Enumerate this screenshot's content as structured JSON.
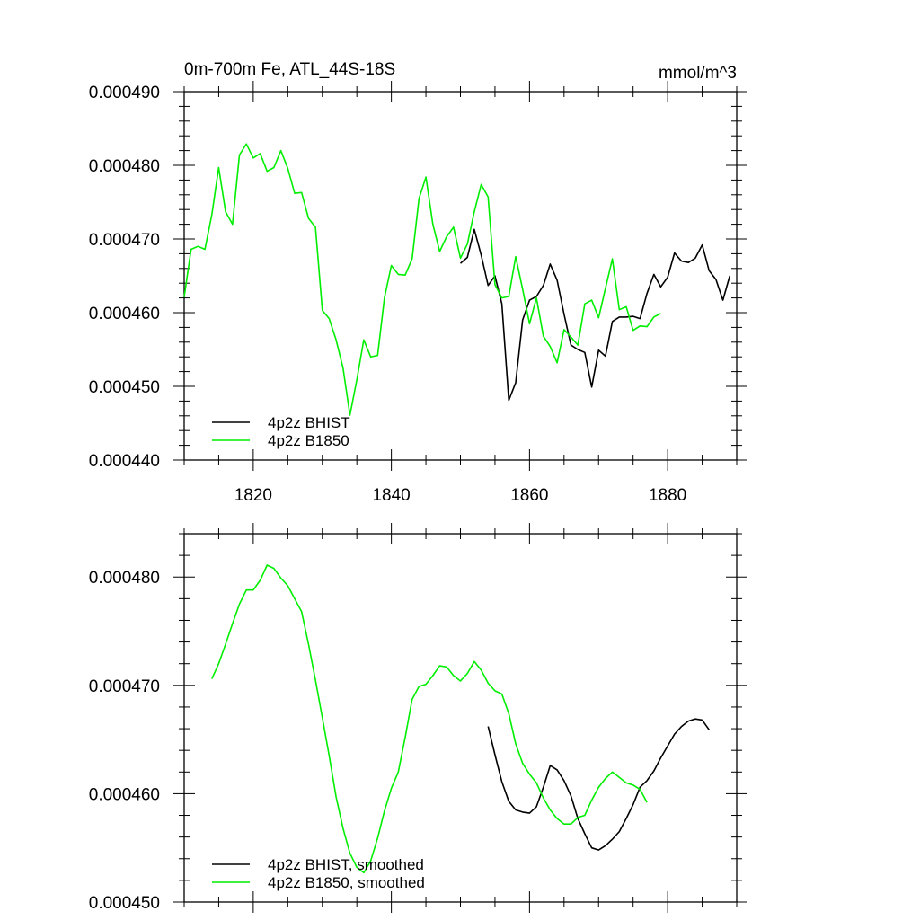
{
  "chart_data": [
    {
      "type": "line",
      "title": "0m-700m Fe, ATL_44S-18S",
      "units": "mmol/m^3",
      "xlim": [
        1810,
        1890
      ],
      "ylim": [
        0.00044,
        0.00049
      ],
      "ytick_values": [
        0.00044,
        0.00045,
        0.00046,
        0.00047,
        0.00048,
        0.00049
      ],
      "ytick_labels": [
        "0.000440",
        "0.000450",
        "0.000460",
        "0.000470",
        "0.000480",
        "0.000490"
      ],
      "xtick_values": [
        1820,
        1840,
        1860,
        1880
      ],
      "xtick_labels": [
        "1820",
        "1840",
        "1860",
        "1880"
      ],
      "legend_position": "bottom-left",
      "series": [
        {
          "name": "4p2z BHIST",
          "color": "#000000",
          "x": [
            1850,
            1851,
            1852,
            1853,
            1854,
            1855,
            1856,
            1857,
            1858,
            1859,
            1860,
            1861,
            1862,
            1863,
            1864,
            1865,
            1866,
            1867,
            1868,
            1869,
            1870,
            1871,
            1872,
            1873,
            1874,
            1875,
            1876,
            1877,
            1878,
            1879,
            1880,
            1881,
            1882,
            1883,
            1884,
            1885,
            1886,
            1887,
            1888,
            1889
          ],
          "y": [
            0.0004667,
            0.0004675,
            0.0004713,
            0.0004678,
            0.0004637,
            0.000465,
            0.0004612,
            0.0004481,
            0.0004505,
            0.000459,
            0.0004617,
            0.0004622,
            0.0004637,
            0.0004666,
            0.0004644,
            0.0004598,
            0.0004556,
            0.000455,
            0.0004546,
            0.0004499,
            0.0004549,
            0.0004541,
            0.0004588,
            0.0004594,
            0.0004594,
            0.0004595,
            0.0004592,
            0.0004626,
            0.0004652,
            0.0004635,
            0.0004648,
            0.0004681,
            0.000467,
            0.0004668,
            0.0004674,
            0.0004692,
            0.0004657,
            0.0004645,
            0.0004617,
            0.000465
          ]
        },
        {
          "name": "4p2z B1850",
          "color": "#00ee00",
          "x": [
            1810,
            1811,
            1812,
            1813,
            1814,
            1815,
            1816,
            1817,
            1818,
            1819,
            1820,
            1821,
            1822,
            1823,
            1824,
            1825,
            1826,
            1827,
            1828,
            1829,
            1830,
            1831,
            1832,
            1833,
            1834,
            1835,
            1836,
            1837,
            1838,
            1839,
            1840,
            1841,
            1842,
            1843,
            1844,
            1845,
            1846,
            1847,
            1848,
            1849,
            1850,
            1851,
            1852,
            1853,
            1854,
            1855,
            1856,
            1857,
            1858,
            1859,
            1860,
            1861,
            1862,
            1863,
            1864,
            1865,
            1866,
            1867,
            1868,
            1869,
            1870,
            1871,
            1872,
            1873,
            1874,
            1875,
            1876,
            1877,
            1878,
            1879
          ],
          "y": [
            0.0004621,
            0.0004686,
            0.000469,
            0.0004686,
            0.0004733,
            0.0004797,
            0.0004737,
            0.000472,
            0.0004814,
            0.0004829,
            0.000481,
            0.0004816,
            0.0004792,
            0.0004797,
            0.000482,
            0.0004796,
            0.0004762,
            0.0004763,
            0.0004728,
            0.0004716,
            0.0004603,
            0.0004592,
            0.0004563,
            0.0004525,
            0.0004461,
            0.0004509,
            0.0004563,
            0.000454,
            0.0004542,
            0.000462,
            0.0004664,
            0.0004652,
            0.0004651,
            0.0004673,
            0.0004755,
            0.0004784,
            0.000472,
            0.0004683,
            0.0004703,
            0.0004716,
            0.0004674,
            0.0004693,
            0.0004737,
            0.0004774,
            0.0004757,
            0.0004638,
            0.000462,
            0.0004622,
            0.0004676,
            0.0004632,
            0.0004585,
            0.000462,
            0.0004568,
            0.0004554,
            0.0004532,
            0.0004577,
            0.0004567,
            0.0004556,
            0.0004612,
            0.0004617,
            0.0004593,
            0.0004633,
            0.0004673,
            0.0004604,
            0.0004608,
            0.0004576,
            0.0004582,
            0.0004581,
            0.0004594,
            0.0004599
          ]
        }
      ]
    },
    {
      "type": "line",
      "title": "",
      "xlim": [
        1810,
        1890
      ],
      "ylim": [
        0.00045,
        0.000484
      ],
      "ytick_values": [
        0.00045,
        0.00046,
        0.00047,
        0.00048
      ],
      "ytick_labels": [
        "0.000450",
        "0.000460",
        "0.000470",
        "0.000480"
      ],
      "xtick_values": [
        1820,
        1840,
        1860,
        1880
      ],
      "legend_position": "bottom-left",
      "series": [
        {
          "name": "4p2z BHIST, smoothed",
          "color": "#000000",
          "x": [
            1854,
            1855,
            1856,
            1857,
            1858,
            1859,
            1860,
            1861,
            1862,
            1863,
            1864,
            1865,
            1866,
            1867,
            1868,
            1869,
            1870,
            1871,
            1872,
            1873,
            1874,
            1875,
            1876,
            1877,
            1878,
            1879,
            1880,
            1881,
            1882,
            1883,
            1884,
            1885,
            1886
          ],
          "y": [
            0.0004662,
            0.0004636,
            0.0004611,
            0.0004593,
            0.0004585,
            0.0004583,
            0.0004582,
            0.0004588,
            0.0004606,
            0.0004626,
            0.0004622,
            0.0004612,
            0.0004598,
            0.0004577,
            0.0004563,
            0.000455,
            0.0004548,
            0.0004552,
            0.0004558,
            0.0004565,
            0.0004577,
            0.000459,
            0.0004606,
            0.0004612,
            0.0004621,
            0.0004633,
            0.0004644,
            0.0004655,
            0.0004662,
            0.0004667,
            0.0004669,
            0.0004668,
            0.0004659
          ]
        },
        {
          "name": "4p2z B1850, smoothed",
          "color": "#00ee00",
          "x": [
            1814,
            1815,
            1816,
            1817,
            1818,
            1819,
            1820,
            1821,
            1822,
            1823,
            1824,
            1825,
            1826,
            1827,
            1828,
            1829,
            1830,
            1831,
            1832,
            1833,
            1834,
            1835,
            1836,
            1837,
            1838,
            1839,
            1840,
            1841,
            1842,
            1843,
            1844,
            1845,
            1846,
            1847,
            1848,
            1849,
            1850,
            1851,
            1852,
            1853,
            1854,
            1855,
            1856,
            1857,
            1858,
            1859,
            1860,
            1861,
            1862,
            1863,
            1864,
            1865,
            1866,
            1867,
            1868,
            1869,
            1870,
            1871,
            1872,
            1873,
            1874,
            1875,
            1876,
            1877
          ],
          "y": [
            0.0004706,
            0.000472,
            0.0004738,
            0.0004757,
            0.0004775,
            0.0004788,
            0.0004788,
            0.0004797,
            0.0004811,
            0.0004808,
            0.0004799,
            0.0004792,
            0.000478,
            0.0004768,
            0.0004738,
            0.0004705,
            0.000467,
            0.0004635,
            0.0004597,
            0.0004568,
            0.0004545,
            0.0004532,
            0.0004527,
            0.0004538,
            0.0004559,
            0.0004584,
            0.0004605,
            0.000462,
            0.0004652,
            0.0004687,
            0.0004699,
            0.0004701,
            0.0004709,
            0.0004718,
            0.0004717,
            0.0004709,
            0.0004704,
            0.0004711,
            0.0004722,
            0.0004714,
            0.0004702,
            0.0004695,
            0.0004692,
            0.0004674,
            0.0004646,
            0.0004628,
            0.0004618,
            0.000461,
            0.0004596,
            0.0004585,
            0.0004577,
            0.0004572,
            0.0004572,
            0.0004578,
            0.000458,
            0.0004594,
            0.0004606,
            0.0004614,
            0.000462,
            0.0004615,
            0.000461,
            0.0004608,
            0.0004604,
            0.0004592
          ]
        }
      ]
    }
  ]
}
